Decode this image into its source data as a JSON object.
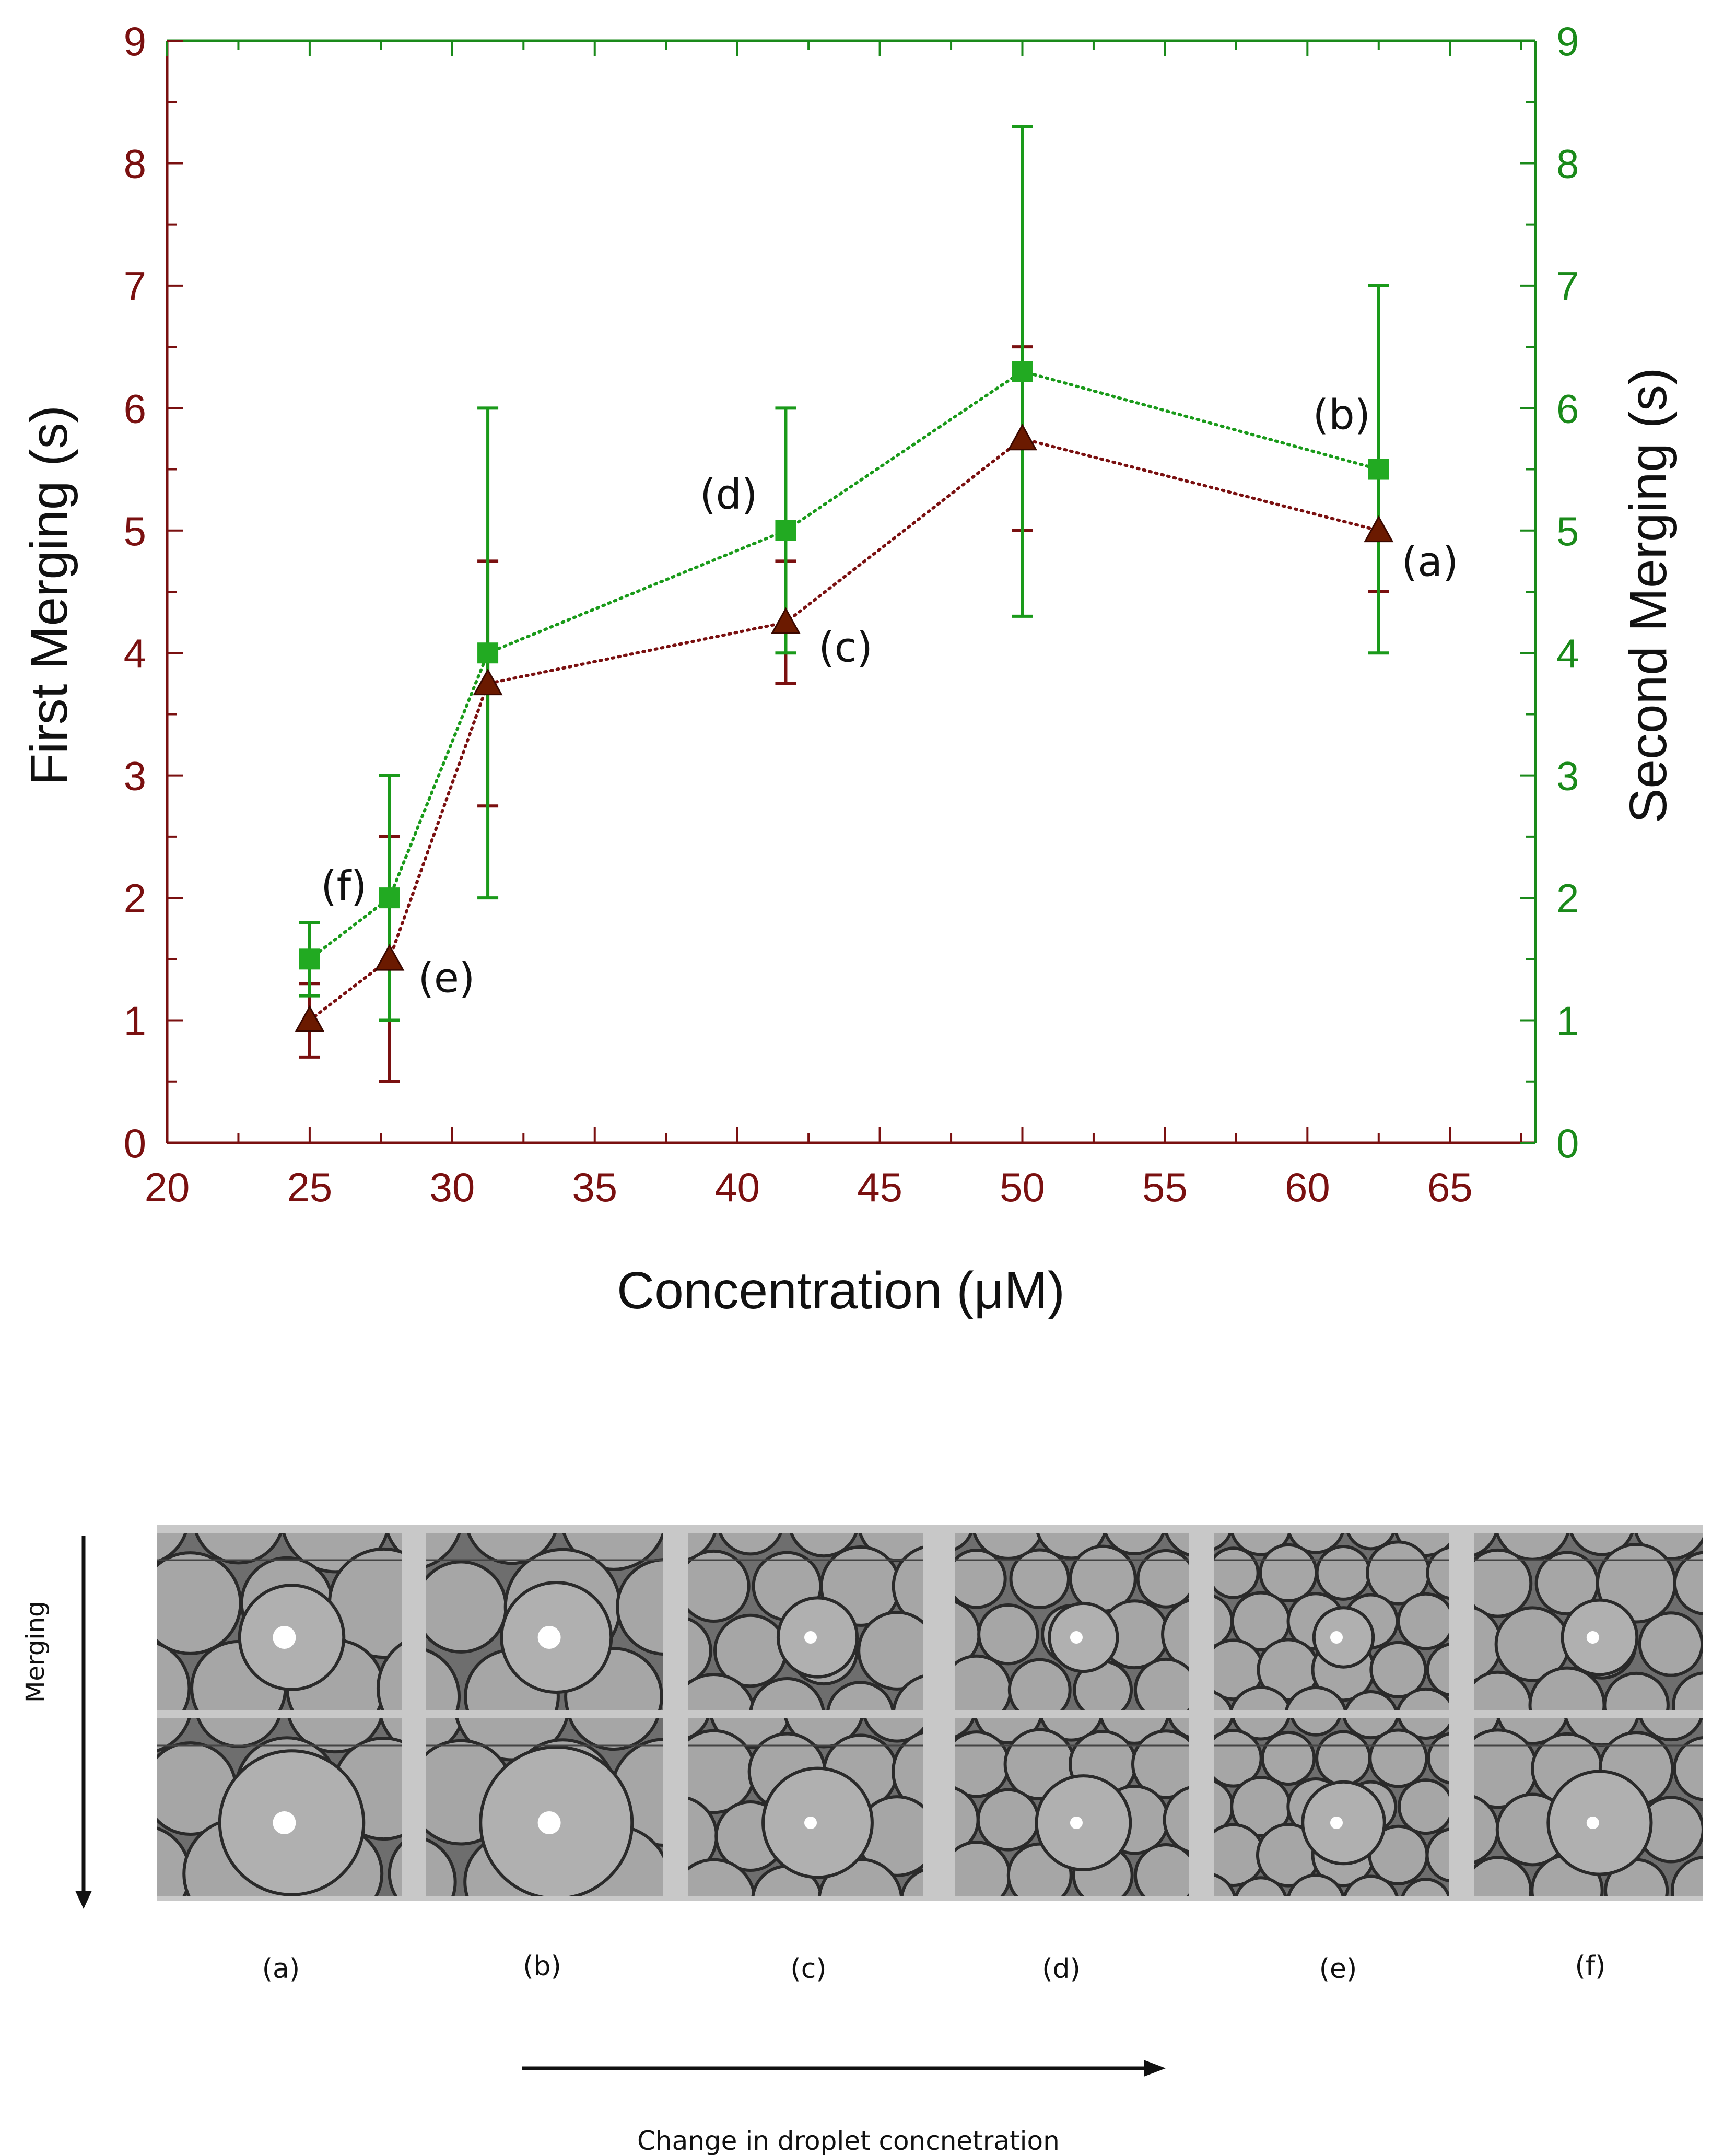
{
  "chart_data": {
    "type": "scatter",
    "title": "",
    "xlabel": "Concentration (μM)",
    "ylabel": "First Merging (s)",
    "y2label": "Second Merging  (s)",
    "xlim": [
      20,
      68
    ],
    "ylim": [
      0,
      9
    ],
    "y2lim": [
      0,
      9
    ],
    "xticks": [
      20,
      25,
      30,
      35,
      40,
      45,
      50,
      55,
      60,
      65
    ],
    "yticks": [
      0,
      1,
      2,
      3,
      4,
      5,
      6,
      7,
      8,
      9
    ],
    "grid": false,
    "series": [
      {
        "axis": "left",
        "color": "#7a1010",
        "marker": "triangle",
        "line": "dotted",
        "x": [
          25,
          27.8,
          31.25,
          41.7,
          50,
          62.5
        ],
        "y": [
          1.0,
          1.5,
          3.75,
          4.25,
          5.75,
          5.0
        ],
        "err_low": [
          0.7,
          0.5,
          2.75,
          3.75,
          5.0,
          4.5
        ],
        "err_high": [
          1.3,
          2.5,
          4.75,
          4.75,
          6.5,
          5.5
        ]
      },
      {
        "axis": "right",
        "color": "#1a9a1a",
        "marker": "square",
        "line": "dotted",
        "x": [
          25,
          27.8,
          31.25,
          41.7,
          50,
          62.5
        ],
        "y": [
          1.5,
          2.0,
          4.0,
          5.0,
          6.3,
          5.5
        ],
        "err_low": [
          1.2,
          1.0,
          2.0,
          4.0,
          4.3,
          4.0
        ],
        "err_high": [
          1.8,
          3.0,
          6.0,
          6.0,
          8.3,
          7.0
        ]
      }
    ],
    "annotations": [
      {
        "text": "(a)",
        "x": 64.3,
        "y": 4.75
      },
      {
        "text": "(b)",
        "x": 61.2,
        "y": 5.95
      },
      {
        "text": "(c)",
        "x": 43.8,
        "y": 4.05
      },
      {
        "text": "(d)",
        "x": 39.7,
        "y": 5.3
      },
      {
        "text": "(e)",
        "x": 29.8,
        "y": 1.35
      },
      {
        "text": "(f)",
        "x": 26.2,
        "y": 2.1
      }
    ]
  },
  "panels": {
    "labels": [
      "(a)",
      "(b)",
      "(c)",
      "(d)",
      "(e)",
      "(f)"
    ],
    "merging_label": "Merging",
    "change_label": "Change in droplet concnetration"
  }
}
